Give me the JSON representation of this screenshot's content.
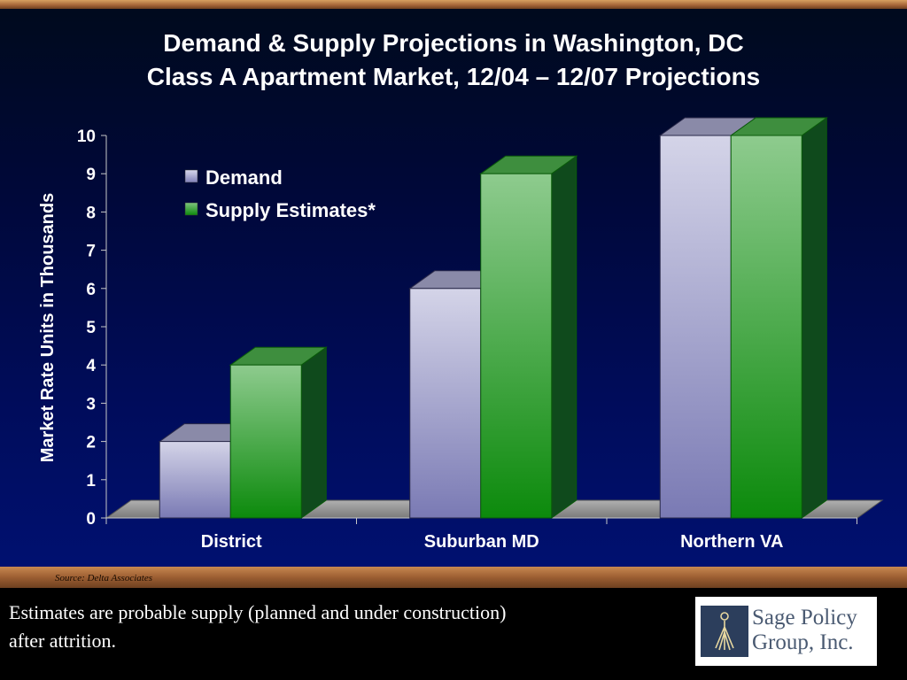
{
  "title_line1": "Demand & Supply Projections in Washington, DC",
  "title_line2": "Class A Apartment Market, 12/04 – 12/07 Projections",
  "chart_data": {
    "type": "bar",
    "categories": [
      "District",
      "Suburban MD",
      "Northern VA"
    ],
    "series": [
      {
        "name": "Demand",
        "values": [
          2,
          6,
          10
        ],
        "color": "#b4b4d4"
      },
      {
        "name": "Supply Estimates*",
        "values": [
          4,
          9,
          10
        ],
        "color": "#1f9a1f"
      }
    ],
    "ylabel": "Market Rate Units in Thousands",
    "ylim": [
      0,
      10
    ],
    "yticks": [
      "0",
      "1",
      "2",
      "3",
      "4",
      "5",
      "6",
      "7",
      "8",
      "9",
      "10"
    ],
    "legend_position": "top-left",
    "grid": false,
    "style": "3d-bar"
  },
  "source_note": "Source: Delta Associates",
  "footnote_line1": "Estimates are probable supply (planned and under construction)",
  "footnote_line2": "after attrition.",
  "logo": {
    "line1": "Sage Policy",
    "line2": "Group, Inc.",
    "emblem_icon": "sage-figure-icon"
  },
  "colors": {
    "background": "#000c5a",
    "accent_bar": "#a8683a",
    "demand": "#b4b4d4",
    "supply": "#1f9a1f"
  }
}
